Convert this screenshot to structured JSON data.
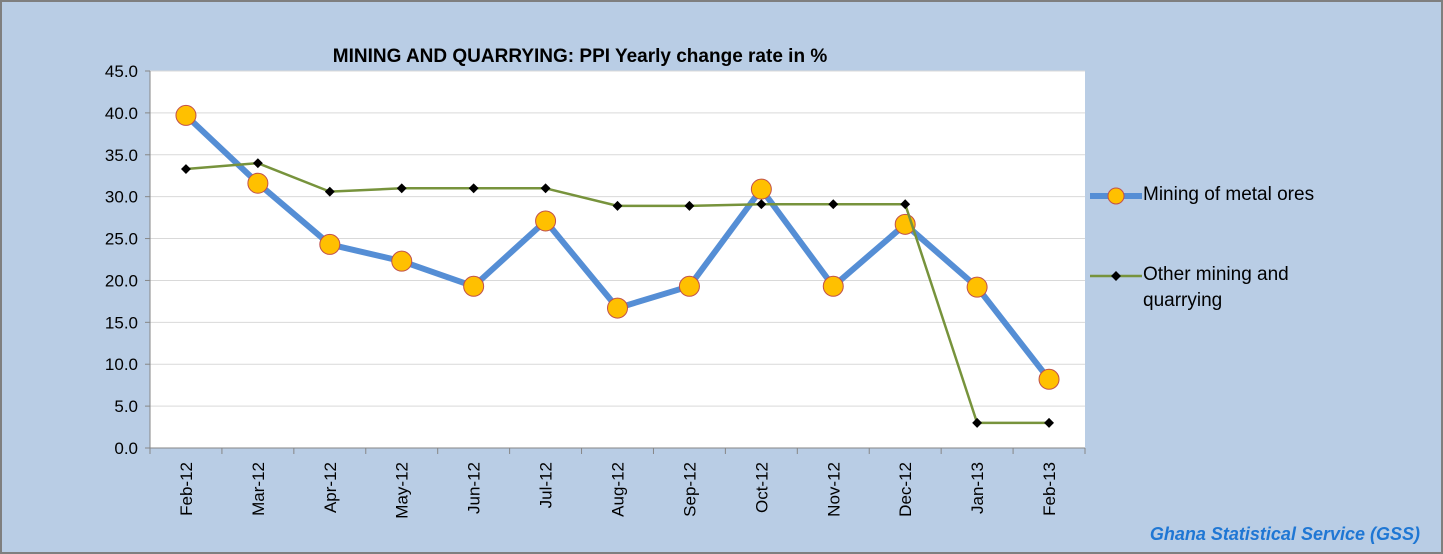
{
  "chart_data": {
    "type": "line",
    "title": "MINING AND QUARRYING:  PPI  Yearly change rate  in %",
    "source": "Ghana Statistical Service (GSS)",
    "categories": [
      "Feb-12",
      "Mar-12",
      "Apr-12",
      "May-12",
      "Jun-12",
      "Jul-12",
      "Aug-12",
      "Sep-12",
      "Oct-12",
      "Nov-12",
      "Dec-12",
      "Jan-13",
      "Feb-13"
    ],
    "series": [
      {
        "name": "Mining of metal ores",
        "color": "#558ed5",
        "marker_color": "#ffc000",
        "values": [
          39.7,
          31.6,
          24.3,
          22.3,
          19.3,
          27.1,
          16.7,
          19.3,
          30.9,
          19.3,
          26.7,
          19.2,
          8.2
        ]
      },
      {
        "name": "Other mining and quarrying",
        "color": "#77933c",
        "marker_color": "#000000",
        "values": [
          33.3,
          34.0,
          30.6,
          31.0,
          31.0,
          31.0,
          28.9,
          28.9,
          29.1,
          29.1,
          29.1,
          3.0,
          3.0
        ]
      }
    ],
    "ylim": [
      0,
      45
    ],
    "yticks": [
      {
        "value": 0,
        "label": "0.0"
      },
      {
        "value": 5,
        "label": "5.0"
      },
      {
        "value": 10,
        "label": "10.0"
      },
      {
        "value": 15,
        "label": "15.0"
      },
      {
        "value": 20,
        "label": "20.0"
      },
      {
        "value": 25,
        "label": "25.0"
      },
      {
        "value": 30,
        "label": "30.0"
      },
      {
        "value": 35,
        "label": "35.0"
      },
      {
        "value": 40,
        "label": "40.0"
      },
      {
        "value": 45,
        "label": "45.0"
      }
    ],
    "grid": true,
    "legend": "right"
  }
}
